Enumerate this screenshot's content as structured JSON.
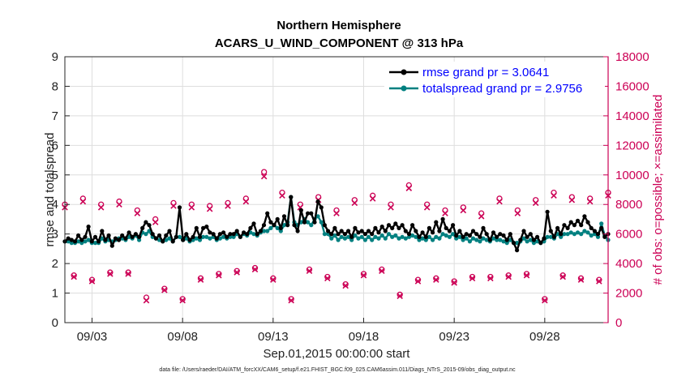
{
  "chart_data": {
    "type": "line",
    "title_line1": "Northern Hemisphere",
    "title_line2": "ACARS_U_WIND_COMPONENT @ 313 hPa",
    "xlabel": "Sep.01,2015 00:00:00 start",
    "ylabel_left": "rmse and totalspread",
    "ylabel_right": "# of obs: o=possible; ×=assimilated",
    "footnote": "data file: /Users/raeder/DAI/ATM_forcXX/CAM6_setup/f.e21.FHIST_BGC.f09_025.CAM6assim.011/Diags_NTrS_2015-09/obs_diag_output.nc",
    "xlim": [
      1.5,
      31.5
    ],
    "ylim_left": [
      0,
      9
    ],
    "ylim_right": [
      0,
      18000
    ],
    "left_ticks": [
      "0",
      "1",
      "2",
      "3",
      "4",
      "5",
      "6",
      "7",
      "8",
      "9"
    ],
    "right_ticks": [
      "0",
      "2000",
      "4000",
      "6000",
      "8000",
      "10000",
      "12000",
      "14000",
      "16000",
      "18000"
    ],
    "x_tick_positions": [
      3,
      8,
      13,
      18,
      23,
      28
    ],
    "x_tick_labels": [
      "09/03",
      "09/08",
      "09/13",
      "09/18",
      "09/23",
      "09/28"
    ],
    "colors": {
      "rmse": "#000000",
      "totalspread": "#008080",
      "obs": "#cc0055",
      "legend_text": "#0000ff"
    },
    "legend": [
      {
        "name": "rmse grand pr = 3.0641",
        "color": "#000000"
      },
      {
        "name": "totalspread grand pr = 2.9756",
        "color": "#008080"
      }
    ],
    "series": [
      {
        "name": "rmse",
        "axis": "left",
        "values": [
          2.75,
          2.85,
          2.8,
          2.75,
          2.95,
          2.8,
          2.9,
          3.25,
          2.75,
          2.9,
          2.75,
          3.1,
          2.8,
          2.95,
          2.6,
          2.85,
          2.8,
          2.95,
          2.85,
          3.05,
          2.9,
          3.0,
          2.9,
          3.2,
          3.4,
          3.3,
          3.0,
          2.85,
          2.95,
          2.75,
          2.95,
          3.1,
          2.75,
          2.9,
          3.9,
          2.8,
          3.0,
          2.8,
          2.9,
          3.2,
          2.9,
          3.2,
          3.25,
          3.05,
          3.0,
          2.85,
          3.0,
          3.05,
          2.9,
          3.0,
          3.0,
          3.1,
          2.9,
          3.05,
          3.0,
          3.2,
          3.35,
          3.0,
          3.1,
          3.3,
          3.7,
          3.4,
          3.3,
          3.5,
          3.2,
          3.6,
          3.3,
          4.25,
          3.3,
          3.1,
          3.8,
          3.4,
          3.7,
          3.7,
          3.4,
          4.1,
          3.9,
          3.3,
          3.1,
          3.0,
          3.2,
          3.0,
          3.1,
          3.0,
          3.1,
          2.9,
          3.2,
          3.05,
          3.1,
          3.0,
          3.1,
          3.0,
          3.2,
          3.05,
          3.25,
          3.1,
          3.3,
          3.2,
          3.35,
          3.2,
          3.3,
          3.1,
          3.0,
          3.3,
          3.1,
          2.9,
          3.05,
          2.9,
          3.2,
          3.05,
          3.4,
          3.1,
          3.5,
          3.2,
          3.1,
          3.3,
          2.95,
          3.1,
          2.9,
          3.0,
          2.95,
          3.1,
          3.0,
          2.9,
          3.2,
          3.0,
          2.8,
          3.05,
          2.9,
          3.0,
          2.95,
          2.8,
          3.0,
          2.7,
          2.45,
          2.8,
          3.1,
          2.9,
          3.0,
          2.8,
          2.9,
          2.7,
          2.85,
          3.75,
          3.1,
          2.9,
          3.2,
          3.0,
          3.3,
          3.2,
          3.4,
          3.3,
          3.45,
          3.3,
          3.6,
          3.4,
          3.2,
          3.1,
          3.0,
          3.2,
          2.9,
          3.0
        ]
      },
      {
        "name": "totalspread",
        "axis": "left",
        "values": [
          2.75,
          2.75,
          2.7,
          2.7,
          2.75,
          2.7,
          2.75,
          2.8,
          2.7,
          2.7,
          2.7,
          2.85,
          2.75,
          2.8,
          2.75,
          2.8,
          2.85,
          2.85,
          2.8,
          2.9,
          2.85,
          2.95,
          2.8,
          3.05,
          3.0,
          3.1,
          2.9,
          2.85,
          2.8,
          2.75,
          2.8,
          2.85,
          2.75,
          2.9,
          2.9,
          2.8,
          2.85,
          2.75,
          2.8,
          2.85,
          2.8,
          2.9,
          2.9,
          2.85,
          2.9,
          2.8,
          2.85,
          2.9,
          2.85,
          2.9,
          2.9,
          3.0,
          2.9,
          3.0,
          2.95,
          3.05,
          3.0,
          2.95,
          3.05,
          3.1,
          3.1,
          3.2,
          3.3,
          3.2,
          3.1,
          3.3,
          3.4,
          4.25,
          3.4,
          3.3,
          3.4,
          3.5,
          3.4,
          3.3,
          3.5,
          3.6,
          3.4,
          3.0,
          3.0,
          2.85,
          2.95,
          2.8,
          2.9,
          2.85,
          2.9,
          2.8,
          2.95,
          2.85,
          2.9,
          2.8,
          2.9,
          2.8,
          2.9,
          2.85,
          2.95,
          2.85,
          3.0,
          2.9,
          2.95,
          2.85,
          2.9,
          2.85,
          2.9,
          2.95,
          2.9,
          2.8,
          2.85,
          2.8,
          2.9,
          2.8,
          2.9,
          2.85,
          3.0,
          2.95,
          2.9,
          3.0,
          2.85,
          2.9,
          2.8,
          2.85,
          2.75,
          2.85,
          2.8,
          2.75,
          2.85,
          2.8,
          2.75,
          2.85,
          2.8,
          2.8,
          2.75,
          2.7,
          2.8,
          2.7,
          2.7,
          2.75,
          2.85,
          2.75,
          2.8,
          2.7,
          2.75,
          2.7,
          2.75,
          2.9,
          2.9,
          2.85,
          3.0,
          2.9,
          3.0,
          3.0,
          3.05,
          3.0,
          3.05,
          3.0,
          3.1,
          3.05,
          2.95,
          3.0,
          2.9,
          3.35,
          2.95,
          2.8
        ]
      },
      {
        "name": "obs_possible",
        "axis": "right",
        "x": [
          1.5,
          2.0,
          2.5,
          3.0,
          3.5,
          4.0,
          4.5,
          5.0,
          5.5,
          6.0,
          6.5,
          7.0,
          7.5,
          8.0,
          8.5,
          9.0,
          9.5,
          10.0,
          10.5,
          11.0,
          11.5,
          12.0,
          12.5,
          13.0,
          13.5,
          14.0,
          14.5,
          15.0,
          15.5,
          16.0,
          16.5,
          17.0,
          17.5,
          18.0,
          18.5,
          19.0,
          19.5,
          20.0,
          20.5,
          21.0,
          21.5,
          22.0,
          22.5,
          23.0,
          23.5,
          24.0,
          24.5,
          25.0,
          25.5,
          26.0,
          26.5,
          27.0,
          27.5,
          28.0,
          28.5,
          29.0,
          29.5,
          30.0,
          30.5,
          31.0,
          31.5
        ],
        "values": [
          8000,
          3200,
          8400,
          2900,
          8000,
          3400,
          8200,
          3400,
          7600,
          1700,
          7000,
          2300,
          8100,
          1600,
          8000,
          3000,
          7900,
          3300,
          8100,
          3500,
          8400,
          3700,
          10200,
          3000,
          8800,
          1600,
          8000,
          3600,
          8500,
          3100,
          7600,
          2600,
          8300,
          3300,
          8600,
          3600,
          8000,
          1900,
          9300,
          2900,
          8000,
          3000,
          7600,
          2800,
          7800,
          3100,
          7400,
          3100,
          8400,
          3200,
          7600,
          3300,
          8300,
          1600,
          8800,
          3200,
          8500,
          3000,
          8400,
          2900,
          8800
        ]
      },
      {
        "name": "obs_assimilated",
        "axis": "right",
        "x": [
          1.5,
          2.0,
          2.5,
          3.0,
          3.5,
          4.0,
          4.5,
          5.0,
          5.5,
          6.0,
          6.5,
          7.0,
          7.5,
          8.0,
          8.5,
          9.0,
          9.5,
          10.0,
          10.5,
          11.0,
          11.5,
          12.0,
          12.5,
          13.0,
          13.5,
          14.0,
          14.5,
          15.0,
          15.5,
          16.0,
          16.5,
          17.0,
          17.5,
          18.0,
          18.5,
          19.0,
          19.5,
          20.0,
          20.5,
          21.0,
          21.5,
          22.0,
          22.5,
          23.0,
          23.5,
          24.0,
          24.5,
          25.0,
          25.5,
          26.0,
          26.5,
          27.0,
          27.5,
          28.0,
          28.5,
          29.0,
          29.5,
          30.0,
          30.5,
          31.0,
          31.5
        ],
        "values": [
          7800,
          3100,
          8200,
          2800,
          7800,
          3300,
          8000,
          3300,
          7400,
          1500,
          6800,
          2200,
          7900,
          1500,
          7800,
          2900,
          7700,
          3200,
          7900,
          3400,
          8200,
          3600,
          9900,
          2900,
          8600,
          1500,
          7800,
          3500,
          8300,
          3000,
          7400,
          2500,
          8100,
          3200,
          8400,
          3500,
          7800,
          1800,
          9100,
          2800,
          7800,
          2900,
          7400,
          2700,
          7600,
          3000,
          7200,
          3000,
          8200,
          3100,
          7400,
          3200,
          8100,
          1500,
          8600,
          3100,
          8300,
          2900,
          8200,
          2800,
          8600
        ]
      }
    ]
  }
}
